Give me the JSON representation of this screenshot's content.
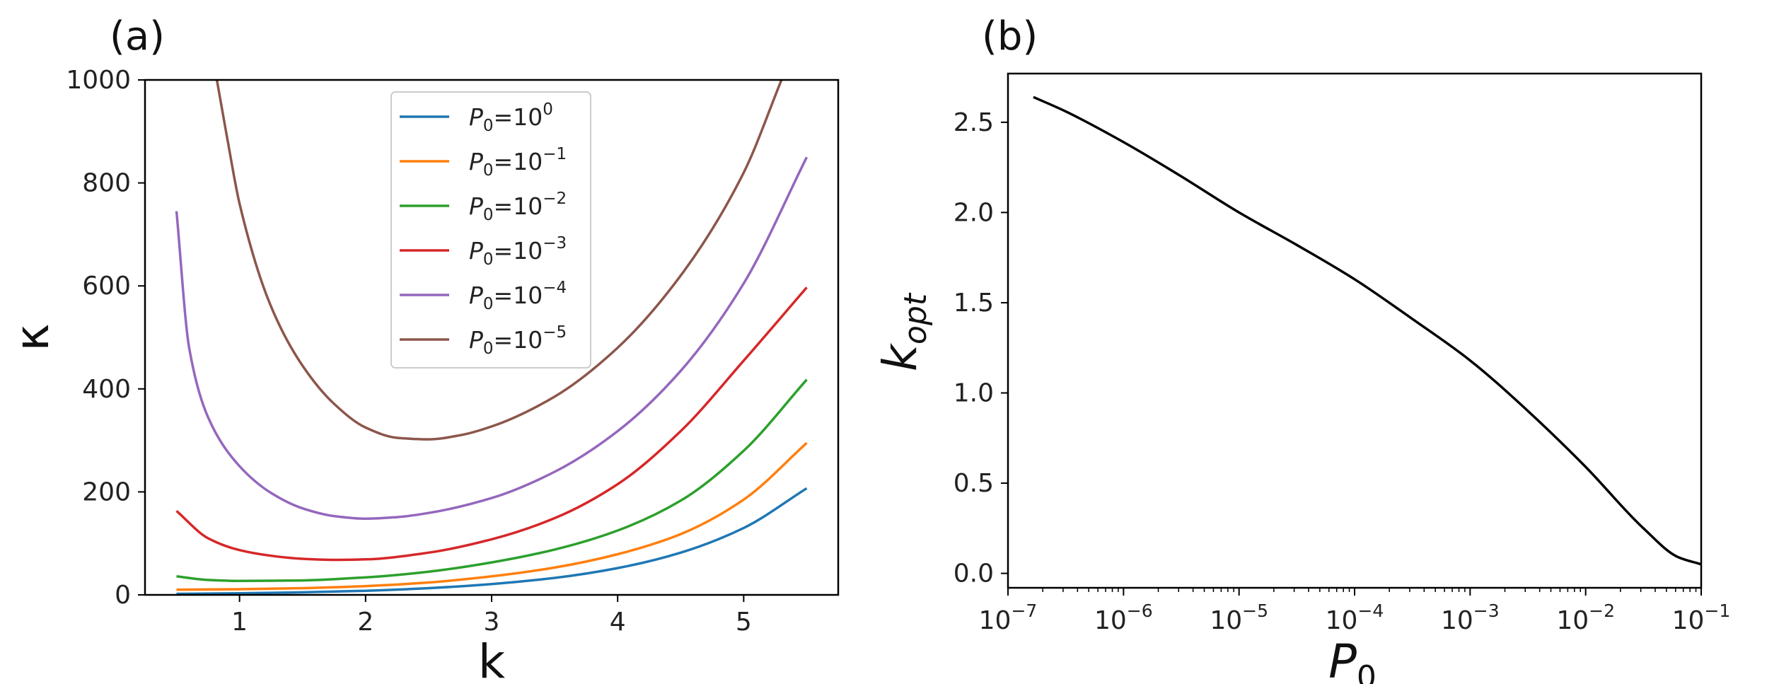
{
  "chart_data": [
    {
      "panel": "(a)",
      "type": "line",
      "xlabel": "k",
      "ylabel": "κ",
      "xlim": [
        0.25,
        5.75
      ],
      "ylim": [
        0,
        1000
      ],
      "xticks": [
        "1",
        "2",
        "3",
        "4",
        "5"
      ],
      "yticks": [
        "0",
        "200",
        "400",
        "600",
        "800",
        "1000"
      ],
      "legend_position": "top-center",
      "series": [
        {
          "name": "P0=10^0",
          "legend_base": "P",
          "legend_sub": "0",
          "legend_eq": "=10",
          "legend_exp": "0",
          "color": "#1f77b4",
          "x": [
            0.5,
            1,
            1.5,
            2,
            2.5,
            3,
            3.5,
            4,
            4.5,
            5,
            5.5
          ],
          "y": [
            2,
            3,
            5,
            8,
            13,
            21,
            33,
            52,
            82,
            130,
            207
          ]
        },
        {
          "name": "P0=10^-1",
          "legend_base": "P",
          "legend_sub": "0",
          "legend_eq": "=10",
          "legend_exp": "−1",
          "color": "#ff7f0e",
          "x": [
            0.5,
            1,
            1.5,
            2,
            2.5,
            3,
            3.5,
            4,
            4.5,
            5,
            5.5
          ],
          "y": [
            10,
            11,
            13,
            17,
            24,
            36,
            53,
            79,
            118,
            185,
            295
          ]
        },
        {
          "name": "P0=10^-2",
          "legend_base": "P",
          "legend_sub": "0",
          "legend_eq": "=10",
          "legend_exp": "−2",
          "color": "#2ca02c",
          "x": [
            0.5,
            0.75,
            1,
            1.5,
            2,
            2.5,
            3,
            3.5,
            4,
            4.5,
            5,
            5.5
          ],
          "y": [
            36,
            29,
            27,
            28,
            34,
            45,
            63,
            88,
            125,
            183,
            280,
            418
          ]
        },
        {
          "name": "P0=10^-3",
          "legend_base": "P",
          "legend_sub": "0",
          "legend_eq": "=10",
          "legend_exp": "−3",
          "color": "#d62728",
          "x": [
            0.5,
            0.75,
            1,
            1.25,
            1.5,
            1.75,
            2,
            2.5,
            3,
            3.5,
            4,
            4.5,
            5,
            5.5
          ],
          "y": [
            163,
            110,
            87,
            76,
            70,
            68,
            69,
            82,
            108,
            149,
            215,
            318,
            455,
            597
          ]
        },
        {
          "name": "P0=10^-4",
          "legend_base": "P",
          "legend_sub": "0",
          "legend_eq": "=10",
          "legend_exp": "−4",
          "color": "#9467bd",
          "x": [
            0.5,
            0.6,
            0.75,
            1,
            1.25,
            1.5,
            1.75,
            2,
            2.25,
            2.5,
            3,
            3.5,
            4,
            4.5,
            5,
            5.5
          ],
          "y": [
            745,
            480,
            345,
            250,
            198,
            168,
            153,
            148,
            151,
            159,
            188,
            239,
            318,
            435,
            605,
            850
          ]
        },
        {
          "name": "P0=10^-5",
          "legend_base": "P",
          "legend_sub": "0",
          "legend_eq": "=10",
          "legend_exp": "−5",
          "color": "#8c564b",
          "x": [
            0.82,
            0.9,
            1,
            1.25,
            1.5,
            1.75,
            2,
            2.25,
            2.5,
            2.75,
            3,
            3.5,
            4,
            4.5,
            5,
            5.3
          ],
          "y": [
            1000,
            890,
            760,
            560,
            445,
            371,
            325,
            305,
            302,
            310,
            327,
            385,
            480,
            620,
            820,
            1000
          ]
        }
      ]
    },
    {
      "panel": "(b)",
      "type": "line",
      "xscale": "log",
      "xlabel_base": "P",
      "xlabel_sub": "0",
      "ylabel_base": "k",
      "ylabel_sub": "opt",
      "xlim_log10": [
        -7,
        -1
      ],
      "ylim": [
        -0.08,
        2.77
      ],
      "xticks": [
        {
          "base": "10",
          "exp": "−7"
        },
        {
          "base": "10",
          "exp": "−6"
        },
        {
          "base": "10",
          "exp": "−5"
        },
        {
          "base": "10",
          "exp": "−4"
        },
        {
          "base": "10",
          "exp": "−3"
        },
        {
          "base": "10",
          "exp": "−2"
        },
        {
          "base": "10",
          "exp": "−1"
        }
      ],
      "yticks": [
        "0.0",
        "0.5",
        "1.0",
        "1.5",
        "2.0",
        "2.5"
      ],
      "series": [
        {
          "name": "k_opt",
          "color": "#000000",
          "x_log10": [
            -6.78,
            -6.5,
            -6.0,
            -5.5,
            -5.0,
            -4.5,
            -4.0,
            -3.5,
            -3.0,
            -2.5,
            -2.0,
            -1.5,
            -1.2,
            -1.0
          ],
          "y": [
            2.64,
            2.56,
            2.39,
            2.2,
            2.0,
            1.82,
            1.63,
            1.41,
            1.18,
            0.9,
            0.59,
            0.25,
            0.09,
            0.05
          ]
        }
      ]
    }
  ]
}
